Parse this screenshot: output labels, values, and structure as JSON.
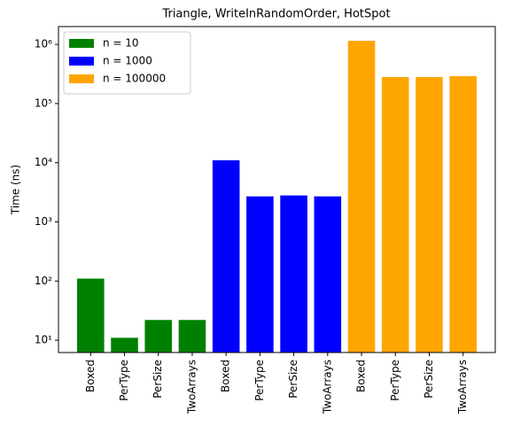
{
  "chart_data": {
    "type": "bar",
    "title": "Triangle, WriteInRandomOrder, HotSpot",
    "y_label": "Time (ns)",
    "categories": [
      "Boxed",
      "PerType",
      "PerSize",
      "TwoArrays",
      "Boxed",
      "PerType",
      "PerSize",
      "TwoArrays",
      "Boxed",
      "PerType",
      "PerSize",
      "TwoArrays"
    ],
    "series": [
      {
        "name": "n = 10",
        "color": "green",
        "values": [
          110,
          11,
          22,
          22,
          null,
          null,
          null,
          null,
          null,
          null,
          null,
          null
        ]
      },
      {
        "name": "n = 1000",
        "color": "blue",
        "values": [
          null,
          null,
          null,
          null,
          11000,
          2700,
          2800,
          2700,
          null,
          null,
          null,
          null
        ]
      },
      {
        "name": "n = 100000",
        "color": "orange",
        "values": [
          null,
          null,
          null,
          null,
          null,
          null,
          null,
          null,
          1150000,
          280000,
          280000,
          290000
        ]
      }
    ],
    "log_scale": true,
    "ylim": [
      6.2,
      2000000
    ],
    "yticks": [
      {
        "value": 10,
        "label": "10¹"
      },
      {
        "value": 100,
        "label": "10²"
      },
      {
        "value": 1000,
        "label": "10³"
      },
      {
        "value": 10000,
        "label": "10⁴"
      },
      {
        "value": 100000,
        "label": "10⁵"
      },
      {
        "value": 1000000,
        "label": "10⁶"
      }
    ],
    "legend": "upper left"
  }
}
